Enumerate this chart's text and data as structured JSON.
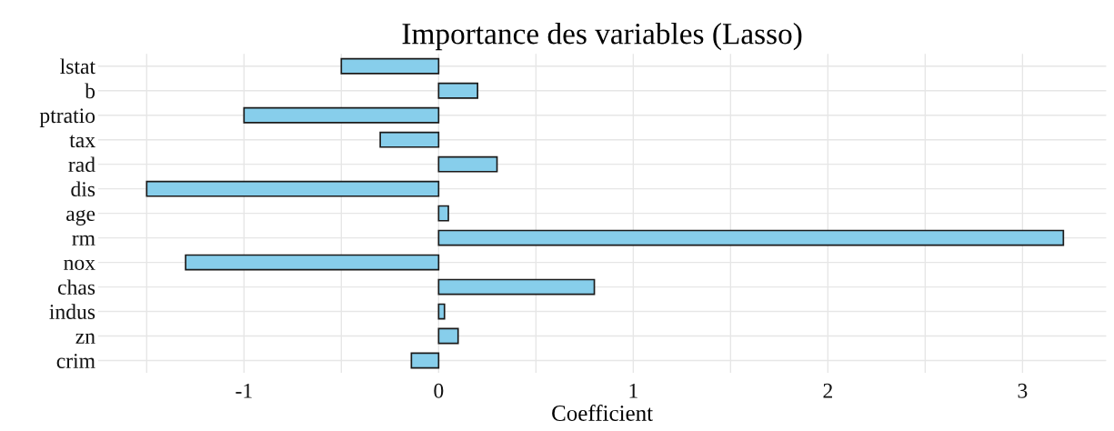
{
  "chart_data": {
    "type": "bar",
    "orientation": "horizontal",
    "title": "Importance des variables (Lasso)",
    "xlabel": "Coefficient",
    "categories": [
      "lstat",
      "b",
      "ptratio",
      "tax",
      "rad",
      "dis",
      "age",
      "rm",
      "nox",
      "chas",
      "indus",
      "zn",
      "crim"
    ],
    "values": [
      -0.5,
      0.2,
      -1.0,
      -0.3,
      0.3,
      -1.5,
      0.05,
      3.21,
      -1.3,
      0.8,
      0.03,
      0.1,
      -0.14
    ],
    "color": "#87ceeb",
    "xlim": [
      -1.75,
      3.43
    ],
    "xticks": [
      {
        "value": -1.5,
        "label": null
      },
      -1,
      {
        "value": -0.5,
        "label": null
      },
      0,
      {
        "value": 0.5,
        "label": null
      },
      1,
      {
        "value": 1.5,
        "label": null
      },
      2,
      {
        "value": 2.5,
        "label": null
      },
      3
    ],
    "grid": true
  }
}
